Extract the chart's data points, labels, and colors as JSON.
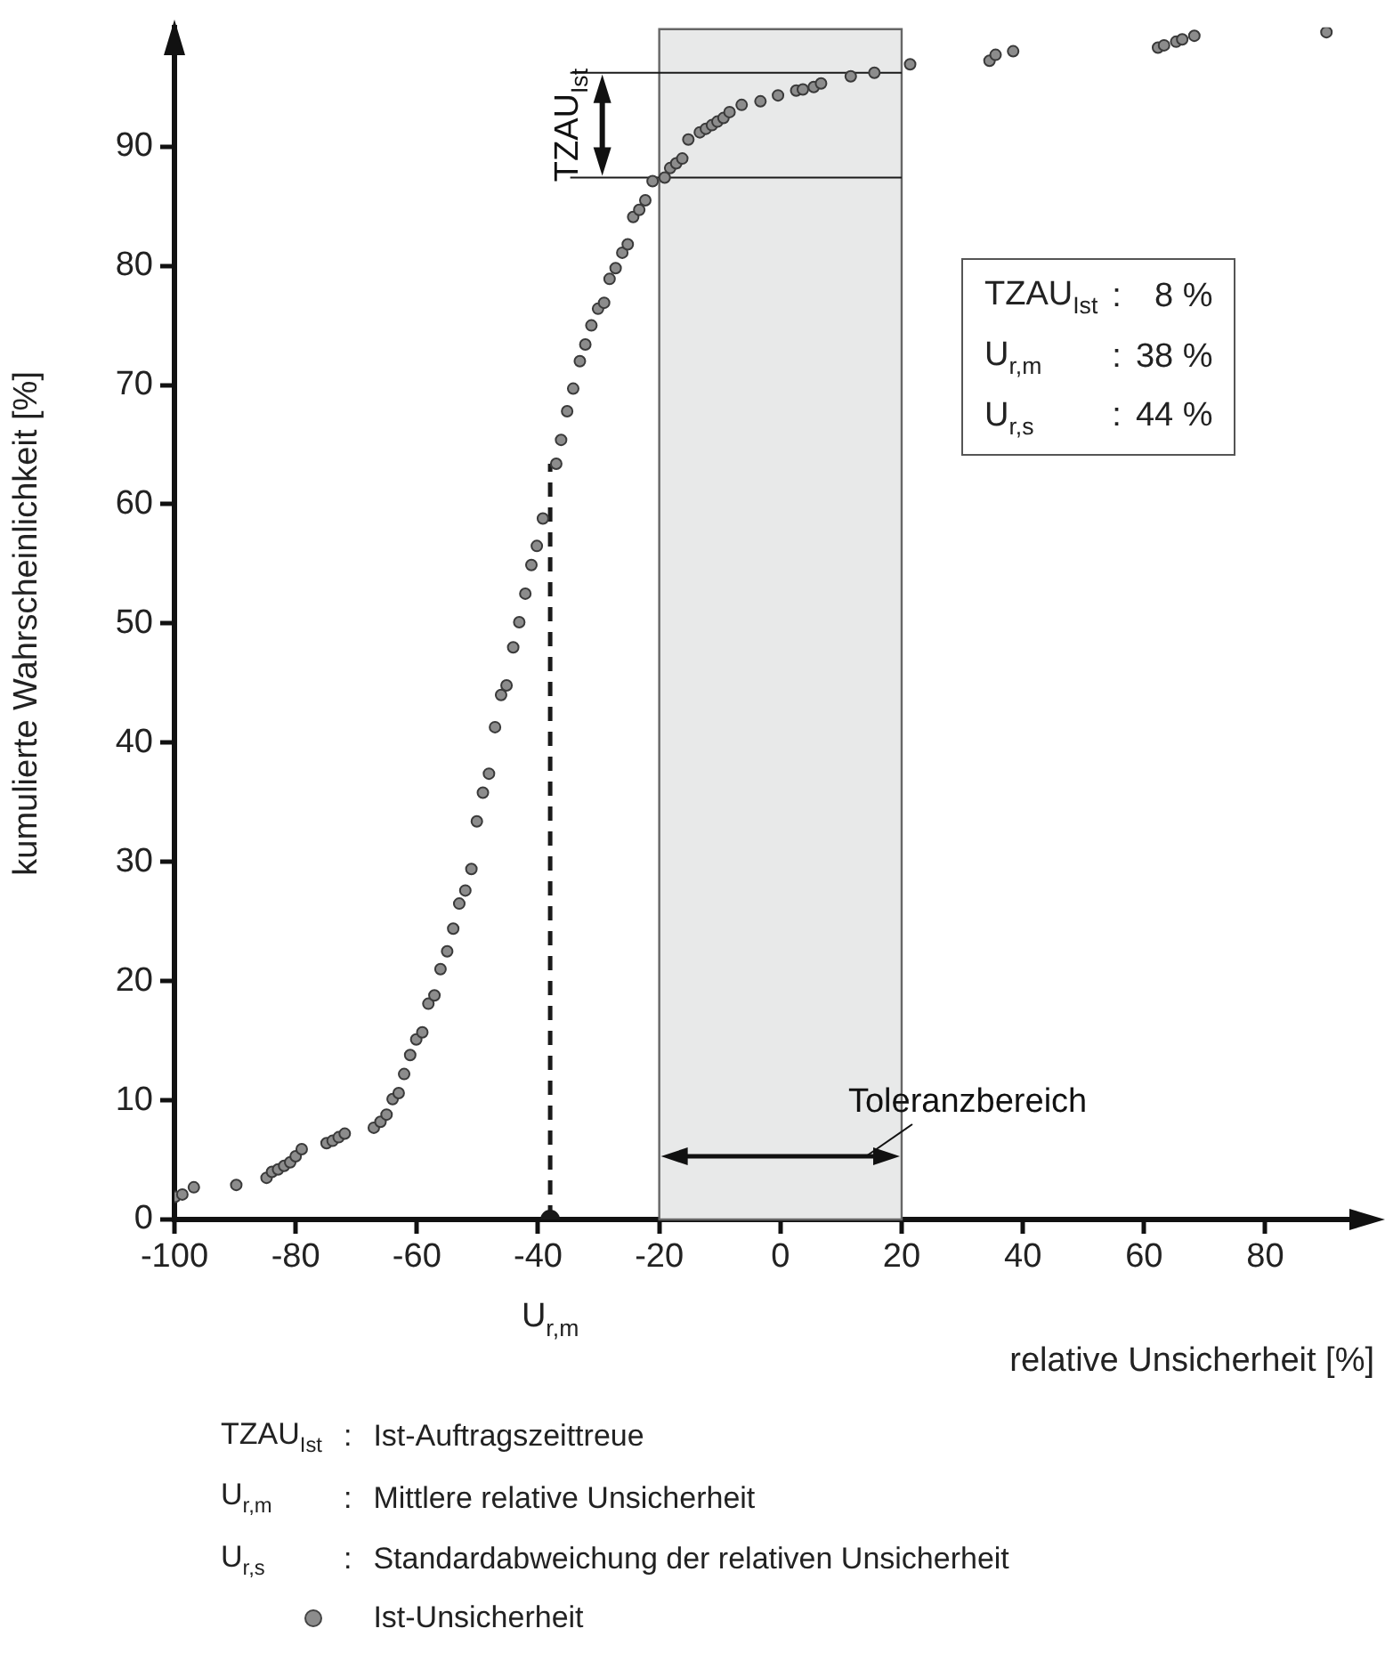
{
  "chart_data": {
    "type": "scatter",
    "xlabel": "relative Unsicherheit [%]",
    "ylabel": "kumulierte Wahrscheinlichkeit [%]",
    "xlim": [
      -100,
      98
    ],
    "xticks": [
      -100,
      -80,
      -60,
      -40,
      -20,
      0,
      20,
      40,
      60,
      80
    ],
    "ylim": [
      0,
      100
    ],
    "yticks": [
      0,
      10,
      20,
      30,
      40,
      50,
      60,
      70,
      80,
      90
    ],
    "grid": false,
    "marker": "circle",
    "legend": "bottom",
    "series": [
      {
        "name": "Ist-Unsicherheit",
        "color": "#8c8c8c",
        "x": [
          -99.9,
          -98.7,
          -96.8,
          -89.8,
          -84.8,
          -83.9,
          -82.9,
          -81.9,
          -80.9,
          -80.0,
          -79.0,
          -74.9,
          -73.9,
          -72.9,
          -71.9,
          -67.1,
          -66.0,
          -65.0,
          -64.0,
          -63.0,
          -62.1,
          -61.1,
          -60.1,
          -59.1,
          -58.1,
          -57.1,
          -56.1,
          -55.0,
          -54.0,
          -53.0,
          -52.0,
          -51.0,
          -50.1,
          -49.1,
          -48.1,
          -47.1,
          -46.1,
          -45.2,
          -44.1,
          -43.1,
          -42.1,
          -41.1,
          -40.2,
          -39.2,
          -37.0,
          -36.2,
          -35.2,
          -34.2,
          -33.1,
          -32.2,
          -31.2,
          -30.1,
          -29.1,
          -28.2,
          -27.2,
          -26.1,
          -25.2,
          -24.3,
          -23.3,
          -22.3,
          -21.1,
          -19.1,
          -18.2,
          -17.2,
          -16.2,
          -15.2,
          -13.3,
          -12.3,
          -11.3,
          -10.4,
          -9.4,
          -8.4,
          -6.4,
          -3.3,
          -0.4,
          2.6,
          3.7,
          5.5,
          6.7,
          11.6,
          15.5,
          21.4,
          34.5,
          35.5,
          38.4,
          62.3,
          63.3,
          65.3,
          66.3,
          68.3,
          90.1
        ],
        "values": [
          1.9,
          2.1,
          2.7,
          2.9,
          3.5,
          4.0,
          4.2,
          4.5,
          4.8,
          5.3,
          5.9,
          6.4,
          6.6,
          6.9,
          7.2,
          7.7,
          8.2,
          8.8,
          10.1,
          10.6,
          12.2,
          13.8,
          15.1,
          15.7,
          18.1,
          18.8,
          21.0,
          22.5,
          24.4,
          26.5,
          27.6,
          29.4,
          33.4,
          35.8,
          37.4,
          41.3,
          44.0,
          44.8,
          48.0,
          50.1,
          52.5,
          54.9,
          56.5,
          58.8,
          63.4,
          65.4,
          67.8,
          69.7,
          72.0,
          73.4,
          75.0,
          76.4,
          76.9,
          78.9,
          79.8,
          81.1,
          81.8,
          84.1,
          84.7,
          85.5,
          87.1,
          87.4,
          88.2,
          88.6,
          89.0,
          90.6,
          91.2,
          91.5,
          91.8,
          92.1,
          92.4,
          92.9,
          93.5,
          93.8,
          94.3,
          94.7,
          94.8,
          95.0,
          95.3,
          95.9,
          96.2,
          96.9,
          97.2,
          97.7,
          98.0,
          98.3,
          98.5,
          98.8,
          99.0,
          99.3,
          99.6
        ]
      },
      {
        "type": "scatter",
        "color": "#1a1a1a",
        "x": [
          -38
        ],
        "values": [
          0
        ]
      }
    ],
    "bands": [
      {
        "axis": "x",
        "from": -20,
        "to": 20,
        "label": "Toleranzbereich",
        "color": "#e8e9e9"
      }
    ],
    "ref_lines": [
      {
        "axis": "x",
        "value": -38,
        "label": "U$_{r,m}$",
        "line_style": "dashed",
        "color": "#1a1a1a"
      },
      {
        "axis": "y",
        "value": 96.2,
        "color": "#1a1a1a"
      },
      {
        "axis": "y",
        "value": 87.4,
        "color": "#1a1a1a"
      }
    ],
    "annotations": [
      "TZAU$_{Ist}$",
      "TZAU$_{Ist}$ : 8 %",
      "U$_{r,m}$ : 38 %",
      "U$_{r,s}$ : 44 %",
      "TZAU$_{Ist}$ : Ist-Auftragszeittreue",
      "U$_{r,m}$ : Mittlere relative Unsicherheit",
      "U$_{r,s}$ : Standardabweichung der relativen Unsicherheit"
    ]
  }
}
